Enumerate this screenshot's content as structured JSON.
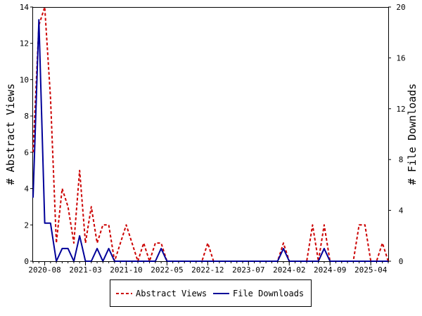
{
  "chart_data": {
    "type": "line",
    "x": [
      "2020-06",
      "2020-07",
      "2020-08",
      "2020-09",
      "2020-10",
      "2020-11",
      "2020-12",
      "2021-01",
      "2021-02",
      "2021-03",
      "2021-04",
      "2021-05",
      "2021-06",
      "2021-07",
      "2021-08",
      "2021-09",
      "2021-10",
      "2021-11",
      "2021-12",
      "2022-01",
      "2022-02",
      "2022-03",
      "2022-04",
      "2022-05",
      "2022-06",
      "2022-07",
      "2022-08",
      "2022-09",
      "2022-10",
      "2022-11",
      "2022-12",
      "2023-01",
      "2023-02",
      "2023-03",
      "2023-04",
      "2023-05",
      "2023-06",
      "2023-07",
      "2023-08",
      "2023-09",
      "2023-10",
      "2023-11",
      "2023-12",
      "2024-01",
      "2024-02",
      "2024-03",
      "2024-04",
      "2024-05",
      "2024-06",
      "2024-07",
      "2024-08",
      "2024-09",
      "2024-10",
      "2024-11",
      "2024-12",
      "2025-01",
      "2025-02",
      "2025-03",
      "2025-04",
      "2025-05",
      "2025-06",
      "2025-07"
    ],
    "xticks": [
      "2020-08",
      "2021-03",
      "2021-10",
      "2022-05",
      "2022-12",
      "2023-07",
      "2024-02",
      "2024-09",
      "2025-04"
    ],
    "xlabel": "",
    "ylabel": "# Abstract Views",
    "y2label": "# File Downloads",
    "ylim": [
      0,
      14
    ],
    "y2lim": [
      0,
      20
    ],
    "yticks": [
      "0",
      "2",
      "4",
      "6",
      "8",
      "10",
      "12",
      "14"
    ],
    "y2ticks": [
      "0",
      "4",
      "8",
      "12",
      "16",
      "20"
    ],
    "series": [
      {
        "name": "Abstract Views",
        "axis": "left",
        "color": "#cc0000",
        "style": "dashed",
        "values": [
          6,
          13,
          14,
          9,
          1,
          4,
          3,
          1,
          5,
          1,
          3,
          1,
          2,
          2,
          0,
          1,
          2,
          1,
          0,
          1,
          0,
          1,
          1,
          0,
          0,
          0,
          0,
          0,
          0,
          0,
          1,
          0,
          0,
          0,
          0,
          0,
          0,
          0,
          0,
          0,
          0,
          0,
          0,
          1,
          0,
          0,
          0,
          0,
          2,
          0,
          2,
          0,
          0,
          0,
          0,
          0,
          2,
          2,
          0,
          0,
          1,
          0
        ]
      },
      {
        "name": "File Downloads",
        "axis": "right",
        "color": "#000099",
        "style": "solid",
        "values": [
          5,
          19,
          3,
          3,
          0,
          1,
          1,
          0,
          2,
          0,
          0,
          1,
          0,
          1,
          0,
          0,
          0,
          0,
          0,
          0,
          0,
          0,
          1,
          0,
          0,
          0,
          0,
          0,
          0,
          0,
          0,
          0,
          0,
          0,
          0,
          0,
          0,
          0,
          0,
          0,
          0,
          0,
          0,
          1,
          0,
          0,
          0,
          0,
          0,
          0,
          1,
          0,
          0,
          0,
          0,
          0,
          0,
          0,
          0,
          0,
          0,
          0
        ]
      }
    ],
    "legend": {
      "placement": "bottom-center"
    }
  }
}
